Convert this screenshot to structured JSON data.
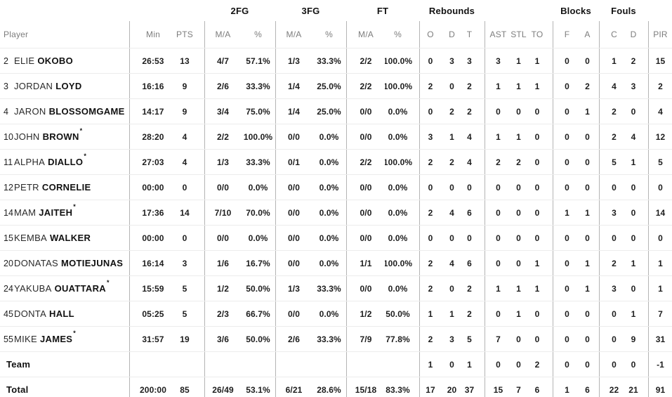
{
  "table": {
    "group_headers": {
      "fg2": "2FG",
      "fg3": "3FG",
      "ft": "FT",
      "rebounds": "Rebounds",
      "blocks": "Blocks",
      "fouls": "Fouls"
    },
    "column_headers": {
      "player": "Player",
      "min": "Min",
      "pts": "PTS",
      "ma": "M/A",
      "pct": "%",
      "reb_o": "O",
      "reb_d": "D",
      "reb_t": "T",
      "ast": "AST",
      "stl": "STL",
      "to": "TO",
      "blk_f": "F",
      "blk_a": "A",
      "foul_c": "C",
      "foul_d": "D",
      "pir": "PIR"
    },
    "starter_mark": "*"
  },
  "colors": {
    "background": "#ffffff",
    "header_text": "#7d7d7d",
    "group_header_text": "#121212",
    "data_text": "#1d1d1d",
    "vertical_line": "#b4b4b4",
    "horizontal_line": "#ececec"
  },
  "rows": [
    {
      "num": "2",
      "first": "ELIE",
      "last": "OKOBO",
      "starter": false,
      "min": "26:53",
      "pts": "13",
      "fg2_ma": "4/7",
      "fg2_pct": "57.1%",
      "fg3_ma": "1/3",
      "fg3_pct": "33.3%",
      "ft_ma": "2/2",
      "ft_pct": "100.0%",
      "reb_o": "0",
      "reb_d": "3",
      "reb_t": "3",
      "ast": "3",
      "stl": "1",
      "to": "1",
      "blk_f": "0",
      "blk_a": "0",
      "foul_c": "1",
      "foul_d": "2",
      "pir": "15"
    },
    {
      "num": "3",
      "first": "JORDAN",
      "last": "LOYD",
      "starter": false,
      "min": "16:16",
      "pts": "9",
      "fg2_ma": "2/6",
      "fg2_pct": "33.3%",
      "fg3_ma": "1/4",
      "fg3_pct": "25.0%",
      "ft_ma": "2/2",
      "ft_pct": "100.0%",
      "reb_o": "2",
      "reb_d": "0",
      "reb_t": "2",
      "ast": "1",
      "stl": "1",
      "to": "1",
      "blk_f": "0",
      "blk_a": "2",
      "foul_c": "4",
      "foul_d": "3",
      "pir": "2"
    },
    {
      "num": "4",
      "first": "JARON",
      "last": "BLOSSOMGAME",
      "starter": false,
      "min": "14:17",
      "pts": "9",
      "fg2_ma": "3/4",
      "fg2_pct": "75.0%",
      "fg3_ma": "1/4",
      "fg3_pct": "25.0%",
      "ft_ma": "0/0",
      "ft_pct": "0.0%",
      "reb_o": "0",
      "reb_d": "2",
      "reb_t": "2",
      "ast": "0",
      "stl": "0",
      "to": "0",
      "blk_f": "0",
      "blk_a": "1",
      "foul_c": "2",
      "foul_d": "0",
      "pir": "4"
    },
    {
      "num": "10",
      "first": "JOHN",
      "last": "BROWN",
      "starter": true,
      "min": "28:20",
      "pts": "4",
      "fg2_ma": "2/2",
      "fg2_pct": "100.0%",
      "fg3_ma": "0/0",
      "fg3_pct": "0.0%",
      "ft_ma": "0/0",
      "ft_pct": "0.0%",
      "reb_o": "3",
      "reb_d": "1",
      "reb_t": "4",
      "ast": "1",
      "stl": "1",
      "to": "0",
      "blk_f": "0",
      "blk_a": "0",
      "foul_c": "2",
      "foul_d": "4",
      "pir": "12"
    },
    {
      "num": "11",
      "first": "ALPHA",
      "last": "DIALLO",
      "starter": true,
      "min": "27:03",
      "pts": "4",
      "fg2_ma": "1/3",
      "fg2_pct": "33.3%",
      "fg3_ma": "0/1",
      "fg3_pct": "0.0%",
      "ft_ma": "2/2",
      "ft_pct": "100.0%",
      "reb_o": "2",
      "reb_d": "2",
      "reb_t": "4",
      "ast": "2",
      "stl": "2",
      "to": "0",
      "blk_f": "0",
      "blk_a": "0",
      "foul_c": "5",
      "foul_d": "1",
      "pir": "5"
    },
    {
      "num": "12",
      "first": "PETR",
      "last": "CORNELIE",
      "starter": false,
      "min": "00:00",
      "pts": "0",
      "fg2_ma": "0/0",
      "fg2_pct": "0.0%",
      "fg3_ma": "0/0",
      "fg3_pct": "0.0%",
      "ft_ma": "0/0",
      "ft_pct": "0.0%",
      "reb_o": "0",
      "reb_d": "0",
      "reb_t": "0",
      "ast": "0",
      "stl": "0",
      "to": "0",
      "blk_f": "0",
      "blk_a": "0",
      "foul_c": "0",
      "foul_d": "0",
      "pir": "0"
    },
    {
      "num": "14",
      "first": "MAM",
      "last": "JAITEH",
      "starter": true,
      "min": "17:36",
      "pts": "14",
      "fg2_ma": "7/10",
      "fg2_pct": "70.0%",
      "fg3_ma": "0/0",
      "fg3_pct": "0.0%",
      "ft_ma": "0/0",
      "ft_pct": "0.0%",
      "reb_o": "2",
      "reb_d": "4",
      "reb_t": "6",
      "ast": "0",
      "stl": "0",
      "to": "0",
      "blk_f": "1",
      "blk_a": "1",
      "foul_c": "3",
      "foul_d": "0",
      "pir": "14"
    },
    {
      "num": "15",
      "first": "KEMBA",
      "last": "WALKER",
      "starter": false,
      "min": "00:00",
      "pts": "0",
      "fg2_ma": "0/0",
      "fg2_pct": "0.0%",
      "fg3_ma": "0/0",
      "fg3_pct": "0.0%",
      "ft_ma": "0/0",
      "ft_pct": "0.0%",
      "reb_o": "0",
      "reb_d": "0",
      "reb_t": "0",
      "ast": "0",
      "stl": "0",
      "to": "0",
      "blk_f": "0",
      "blk_a": "0",
      "foul_c": "0",
      "foul_d": "0",
      "pir": "0"
    },
    {
      "num": "20",
      "first": "DONATAS",
      "last": "MOTIEJUNAS",
      "starter": false,
      "min": "16:14",
      "pts": "3",
      "fg2_ma": "1/6",
      "fg2_pct": "16.7%",
      "fg3_ma": "0/0",
      "fg3_pct": "0.0%",
      "ft_ma": "1/1",
      "ft_pct": "100.0%",
      "reb_o": "2",
      "reb_d": "4",
      "reb_t": "6",
      "ast": "0",
      "stl": "0",
      "to": "1",
      "blk_f": "0",
      "blk_a": "1",
      "foul_c": "2",
      "foul_d": "1",
      "pir": "1"
    },
    {
      "num": "24",
      "first": "YAKUBA",
      "last": "OUATTARA",
      "starter": true,
      "min": "15:59",
      "pts": "5",
      "fg2_ma": "1/2",
      "fg2_pct": "50.0%",
      "fg3_ma": "1/3",
      "fg3_pct": "33.3%",
      "ft_ma": "0/0",
      "ft_pct": "0.0%",
      "reb_o": "2",
      "reb_d": "0",
      "reb_t": "2",
      "ast": "1",
      "stl": "1",
      "to": "1",
      "blk_f": "0",
      "blk_a": "1",
      "foul_c": "3",
      "foul_d": "0",
      "pir": "1"
    },
    {
      "num": "45",
      "first": "DONTA",
      "last": "HALL",
      "starter": false,
      "min": "05:25",
      "pts": "5",
      "fg2_ma": "2/3",
      "fg2_pct": "66.7%",
      "fg3_ma": "0/0",
      "fg3_pct": "0.0%",
      "ft_ma": "1/2",
      "ft_pct": "50.0%",
      "reb_o": "1",
      "reb_d": "1",
      "reb_t": "2",
      "ast": "0",
      "stl": "1",
      "to": "0",
      "blk_f": "0",
      "blk_a": "0",
      "foul_c": "0",
      "foul_d": "1",
      "pir": "7"
    },
    {
      "num": "55",
      "first": "MIKE",
      "last": "JAMES",
      "starter": true,
      "min": "31:57",
      "pts": "19",
      "fg2_ma": "3/6",
      "fg2_pct": "50.0%",
      "fg3_ma": "2/6",
      "fg3_pct": "33.3%",
      "ft_ma": "7/9",
      "ft_pct": "77.8%",
      "reb_o": "2",
      "reb_d": "3",
      "reb_t": "5",
      "ast": "7",
      "stl": "0",
      "to": "0",
      "blk_f": "0",
      "blk_a": "0",
      "foul_c": "0",
      "foul_d": "9",
      "pir": "31"
    },
    {
      "num": "",
      "first": "",
      "last": "Team",
      "starter": false,
      "min": "",
      "pts": "",
      "fg2_ma": "",
      "fg2_pct": "",
      "fg3_ma": "",
      "fg3_pct": "",
      "ft_ma": "",
      "ft_pct": "",
      "reb_o": "1",
      "reb_d": "0",
      "reb_t": "1",
      "ast": "0",
      "stl": "0",
      "to": "2",
      "blk_f": "0",
      "blk_a": "0",
      "foul_c": "0",
      "foul_d": "0",
      "pir": "-1"
    },
    {
      "num": "",
      "first": "",
      "last": "Total",
      "starter": false,
      "min": "200:00",
      "pts": "85",
      "fg2_ma": "26/49",
      "fg2_pct": "53.1%",
      "fg3_ma": "6/21",
      "fg3_pct": "28.6%",
      "ft_ma": "15/18",
      "ft_pct": "83.3%",
      "reb_o": "17",
      "reb_d": "20",
      "reb_t": "37",
      "ast": "15",
      "stl": "7",
      "to": "6",
      "blk_f": "1",
      "blk_a": "6",
      "foul_c": "22",
      "foul_d": "21",
      "pir": "91"
    }
  ]
}
